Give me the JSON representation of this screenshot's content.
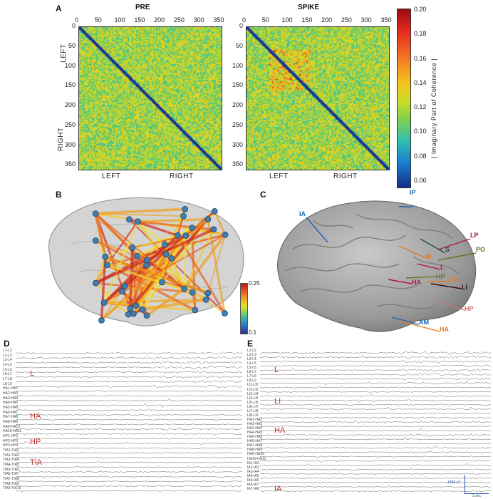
{
  "panels": {
    "a": "A",
    "b": "B",
    "c": "C",
    "d": "D",
    "e": "E"
  },
  "matrices": {
    "pre_title": "PRE",
    "spike_title": "SPIKE",
    "xticks": [
      "0",
      "50",
      "100",
      "150",
      "200",
      "250",
      "300",
      "350"
    ],
    "yticks": [
      "0",
      "50",
      "100",
      "150",
      "200",
      "250",
      "300",
      "350"
    ],
    "left_label": "LEFT",
    "right_label": "RIGHT",
    "colorbar_label": "| Imaginary Part of Coherence |",
    "colorbar_ticks": [
      "0.20",
      "0.18",
      "0.16",
      "0.14",
      "0.12",
      "0.10",
      "0.08",
      "0.06"
    ]
  },
  "brain_b": {
    "scale_max": "0.25",
    "scale_min": "0.1"
  },
  "brain_c": {
    "labels": [
      {
        "text": "IP",
        "color": "#1a66b3"
      },
      {
        "text": "IA",
        "color": "#1a66b3"
      },
      {
        "text": "LP",
        "color": "#b01845"
      },
      {
        "text": "S",
        "color": "#1f4d4d"
      },
      {
        "text": "PO",
        "color": "#5c7a1f"
      },
      {
        "text": "M",
        "color": "#e07b20"
      },
      {
        "text": "L",
        "color": "#b01845"
      },
      {
        "text": "HP",
        "color": "#5c7a1f"
      },
      {
        "text": "HA",
        "color": "#b01845"
      },
      {
        "text": "TIA",
        "color": "#e07b20"
      },
      {
        "text": "LI",
        "color": "#3a1010"
      },
      {
        "text": "HP",
        "color": "#d97070"
      },
      {
        "text": "AM",
        "color": "#1a66b3"
      },
      {
        "text": "HA",
        "color": "#e07b20"
      }
    ]
  },
  "eeg_d": {
    "channels": [
      "L1-L2",
      "L2-L3",
      "L3-L4",
      "L4-L5",
      "L5-L6",
      "L6-L7",
      "L7-L8",
      "L8-L9",
      "HA1-HA2",
      "HA2-HA3",
      "HA3-HA4",
      "HA4-HA5",
      "HA5-HA6",
      "HA6-HA7",
      "HA7-HA8",
      "HA8-HA9",
      "HA9-HA10",
      "HA10-HA11",
      "HP1-HP2",
      "HP2-HP3",
      "HP3-HP4",
      "TIA1-TIA2",
      "TIA2-TIA3",
      "TIA3-TIA4",
      "TIA4-TIA5",
      "TIA5-TIA6",
      "TIA6-TIA7",
      "TIA7-TIA8",
      "TIA8-TIA9",
      "TIA9-TIA10"
    ],
    "groups": [
      "L",
      "HA",
      "HP",
      "TIA"
    ]
  },
  "eeg_e": {
    "channels": [
      "L1-L2",
      "L2-L3",
      "L3-L4",
      "L4-L5",
      "L5-L6",
      "L6-L7",
      "L7-L8",
      "L8-L9",
      "LI1-LI2",
      "LI2-LI3",
      "LI3-LI4",
      "LI4-LI5",
      "LI5-LI6",
      "LI6-LI7",
      "LI7-LI8",
      "LI8-LI9",
      "HA1-HA2",
      "HA2-HA3",
      "HA3-HA4",
      "HA4-HA5",
      "HA5-HA6",
      "HA6-HA7",
      "HA7-HA8",
      "HA8-HA9",
      "HA9-HA10",
      "HA10-HA11",
      "IA1-IA2",
      "IA2-IA3",
      "IA3-IA4",
      "IA4-IA5",
      "IA5-IA6",
      "IA6-IA7",
      "IA7-IA8"
    ],
    "groups": [
      "L",
      "LI",
      "HA",
      "IA"
    ],
    "scale_label": "1400 uV",
    "time_label": "1 sec"
  }
}
